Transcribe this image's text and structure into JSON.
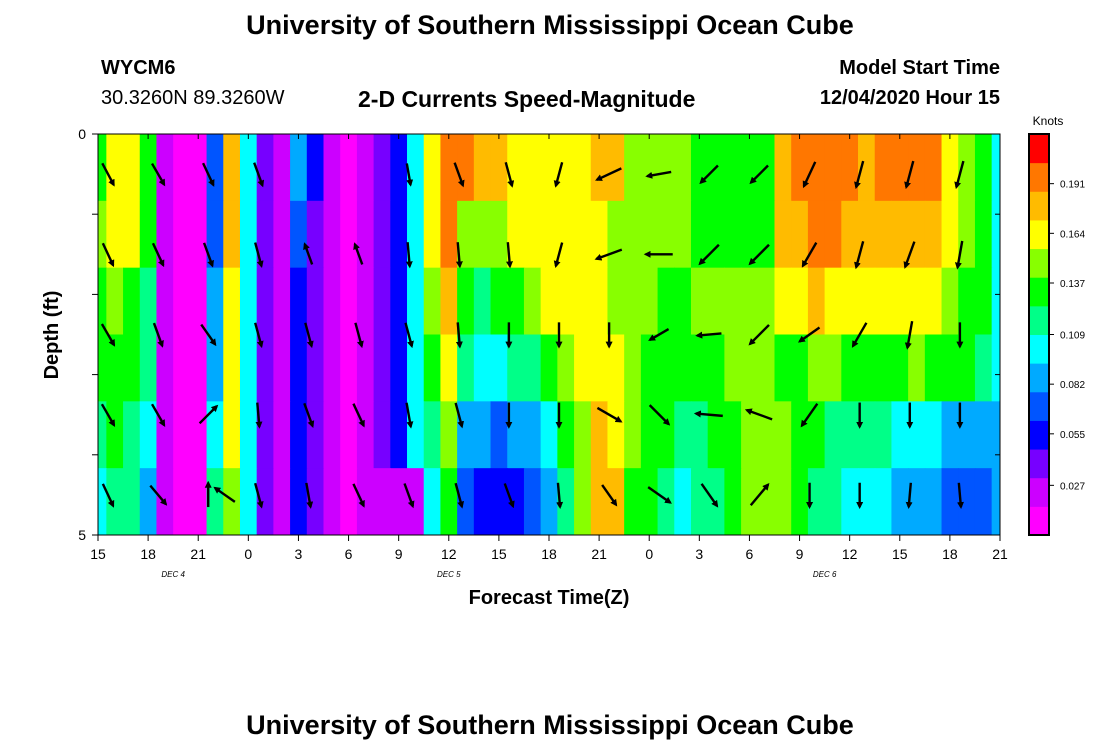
{
  "header": {
    "title": "University of Southern Mississippi Ocean Cube",
    "station_id": "WYCM6",
    "station_coords": "30.3260N 89.3260W",
    "plot_title": "2-D Currents Speed-Magnitude",
    "model_start_label": "Model Start Time",
    "model_start_value": "12/04/2020 Hour 15"
  },
  "footer": {
    "title": "University of Southern Mississippi Ocean Cube"
  },
  "colorbar": {
    "unit_label": "Knots",
    "tick_values": [
      0.027,
      0.055,
      0.082,
      0.109,
      0.137,
      0.164,
      0.191
    ],
    "tick_labels": [
      "0.027",
      "0.055",
      "0.082",
      "0.109",
      "0.137",
      "0.164",
      "0.191"
    ],
    "range": [
      0.0,
      0.218
    ],
    "colors": [
      "#ff00ff",
      "#cc00ff",
      "#7700ff",
      "#0000ff",
      "#0055ff",
      "#00aaff",
      "#00ffff",
      "#00ff88",
      "#00ff00",
      "#88ff00",
      "#ffff00",
      "#ffbb00",
      "#ff7700",
      "#ff0000"
    ]
  },
  "chart_data": {
    "type": "heatmap",
    "title": "2-D Currents Speed-Magnitude",
    "xlabel": "Forecast Time(Z)",
    "ylabel": "Depth (ft)",
    "y_range": [
      0,
      5
    ],
    "y_tick_labels": [
      "0",
      "5"
    ],
    "x_range_hours": [
      0,
      54
    ],
    "x_tick_labels": [
      "15",
      "18",
      "21",
      "0",
      "3",
      "6",
      "9",
      "12",
      "15",
      "18",
      "21",
      "0",
      "3",
      "6",
      "9",
      "12",
      "15",
      "18",
      "21"
    ],
    "date_labels": [
      "DEC 4",
      "DEC 5",
      "DEC 6"
    ],
    "date_label_hours": [
      4.5,
      21,
      43.5
    ],
    "depth_levels": [
      0.5,
      1.5,
      2.5,
      3.5,
      4.5
    ],
    "speed_profile_hours": [
      0,
      1,
      2,
      3,
      4,
      5,
      6,
      7,
      8,
      9,
      10,
      11,
      12,
      13,
      14,
      15,
      16,
      17,
      18,
      19,
      20,
      21,
      22,
      23,
      24,
      25,
      26,
      27,
      28,
      29,
      30,
      31,
      32,
      33,
      34,
      35,
      36,
      37,
      38,
      39,
      40,
      41,
      42,
      43,
      44,
      45,
      46,
      47,
      48,
      49,
      50,
      51,
      52,
      53,
      54
    ],
    "speed_knots": [
      [
        0.135,
        0.16,
        0.17,
        0.14,
        0.02,
        0.015,
        0.015,
        0.07,
        0.18,
        0.1,
        0.04,
        0.03,
        0.09,
        0.06,
        0.02,
        0.015,
        0.02,
        0.04,
        0.06,
        0.1,
        0.17,
        0.2,
        0.19,
        0.18,
        0.175,
        0.17,
        0.165,
        0.16,
        0.165,
        0.17,
        0.18,
        0.175,
        0.15,
        0.145,
        0.15,
        0.145,
        0.14,
        0.14,
        0.135,
        0.13,
        0.13,
        0.18,
        0.19,
        0.195,
        0.2,
        0.195,
        0.185,
        0.19,
        0.19,
        0.195,
        0.19,
        0.17,
        0.15,
        0.13,
        0.1
      ],
      [
        0.15,
        0.165,
        0.16,
        0.13,
        0.02,
        0.015,
        0.015,
        0.07,
        0.175,
        0.1,
        0.04,
        0.03,
        0.07,
        0.04,
        0.02,
        0.015,
        0.02,
        0.04,
        0.06,
        0.1,
        0.16,
        0.19,
        0.145,
        0.145,
        0.15,
        0.165,
        0.17,
        0.17,
        0.165,
        0.16,
        0.16,
        0.155,
        0.15,
        0.15,
        0.15,
        0.145,
        0.14,
        0.14,
        0.135,
        0.14,
        0.14,
        0.18,
        0.185,
        0.19,
        0.19,
        0.185,
        0.175,
        0.175,
        0.175,
        0.185,
        0.18,
        0.165,
        0.15,
        0.13,
        0.1
      ],
      [
        0.14,
        0.15,
        0.14,
        0.12,
        0.02,
        0.015,
        0.015,
        0.08,
        0.17,
        0.1,
        0.04,
        0.03,
        0.06,
        0.04,
        0.02,
        0.015,
        0.02,
        0.04,
        0.06,
        0.1,
        0.15,
        0.18,
        0.13,
        0.12,
        0.125,
        0.135,
        0.15,
        0.16,
        0.165,
        0.165,
        0.16,
        0.155,
        0.15,
        0.145,
        0.14,
        0.14,
        0.145,
        0.15,
        0.15,
        0.155,
        0.155,
        0.165,
        0.17,
        0.175,
        0.17,
        0.165,
        0.16,
        0.16,
        0.16,
        0.165,
        0.16,
        0.15,
        0.14,
        0.125,
        0.1
      ],
      [
        0.125,
        0.14,
        0.13,
        0.11,
        0.02,
        0.015,
        0.015,
        0.09,
        0.165,
        0.1,
        0.04,
        0.03,
        0.06,
        0.04,
        0.02,
        0.015,
        0.02,
        0.04,
        0.06,
        0.1,
        0.13,
        0.16,
        0.11,
        0.1,
        0.1,
        0.11,
        0.12,
        0.13,
        0.145,
        0.16,
        0.17,
        0.165,
        0.15,
        0.14,
        0.135,
        0.13,
        0.135,
        0.14,
        0.145,
        0.145,
        0.145,
        0.14,
        0.14,
        0.145,
        0.145,
        0.14,
        0.14,
        0.14,
        0.14,
        0.145,
        0.14,
        0.135,
        0.13,
        0.12,
        0.1
      ],
      [
        0.11,
        0.125,
        0.12,
        0.1,
        0.02,
        0.015,
        0.015,
        0.1,
        0.16,
        0.1,
        0.04,
        0.03,
        0.06,
        0.04,
        0.02,
        0.015,
        0.02,
        0.04,
        0.06,
        0.1,
        0.11,
        0.15,
        0.09,
        0.08,
        0.075,
        0.08,
        0.09,
        0.1,
        0.125,
        0.15,
        0.175,
        0.17,
        0.145,
        0.135,
        0.125,
        0.115,
        0.12,
        0.13,
        0.14,
        0.15,
        0.15,
        0.145,
        0.14,
        0.13,
        0.12,
        0.115,
        0.11,
        0.11,
        0.105,
        0.1,
        0.095,
        0.09,
        0.085,
        0.08,
        0.09
      ],
      [
        0.095,
        0.11,
        0.11,
        0.09,
        0.02,
        0.015,
        0.015,
        0.11,
        0.155,
        0.1,
        0.04,
        0.03,
        0.06,
        0.04,
        0.02,
        0.015,
        0.02,
        0.03,
        0.03,
        0.03,
        0.095,
        0.135,
        0.07,
        0.06,
        0.055,
        0.06,
        0.07,
        0.085,
        0.11,
        0.145,
        0.185,
        0.18,
        0.14,
        0.125,
        0.115,
        0.105,
        0.11,
        0.12,
        0.135,
        0.15,
        0.155,
        0.15,
        0.14,
        0.12,
        0.11,
        0.1,
        0.095,
        0.095,
        0.09,
        0.085,
        0.08,
        0.075,
        0.07,
        0.065,
        0.08
      ]
    ],
    "vectors": [
      {
        "hour": 0,
        "dir_deg": 152,
        "mag": 0.9,
        "depth": 0.5
      },
      {
        "hour": 3,
        "dir_deg": 150,
        "mag": 0.9,
        "depth": 0.5
      },
      {
        "hour": 6,
        "dir_deg": 155,
        "mag": 0.9,
        "depth": 0.5
      },
      {
        "hour": 9,
        "dir_deg": 160,
        "mag": 0.9,
        "depth": 0.5
      },
      {
        "hour": 18,
        "dir_deg": 170,
        "mag": 0.8,
        "depth": 0.5
      },
      {
        "hour": 21,
        "dir_deg": 160,
        "mag": 0.9,
        "depth": 0.5
      },
      {
        "hour": 24,
        "dir_deg": 165,
        "mag": 0.9,
        "depth": 0.5
      },
      {
        "hour": 27,
        "dir_deg": 195,
        "mag": 0.9,
        "depth": 0.5
      },
      {
        "hour": 30,
        "dir_deg": 245,
        "mag": 1.0,
        "depth": 0.5
      },
      {
        "hour": 33,
        "dir_deg": 260,
        "mag": 0.9,
        "depth": 0.5
      },
      {
        "hour": 36,
        "dir_deg": 225,
        "mag": 0.9,
        "depth": 0.5
      },
      {
        "hour": 39,
        "dir_deg": 225,
        "mag": 0.9,
        "depth": 0.5
      },
      {
        "hour": 42,
        "dir_deg": 205,
        "mag": 1.0,
        "depth": 0.5
      },
      {
        "hour": 45,
        "dir_deg": 195,
        "mag": 1.0,
        "depth": 0.5
      },
      {
        "hour": 48,
        "dir_deg": 195,
        "mag": 1.0,
        "depth": 0.5
      },
      {
        "hour": 51,
        "dir_deg": 195,
        "mag": 1.0,
        "depth": 0.5
      },
      {
        "hour": 0,
        "dir_deg": 155,
        "mag": 0.9,
        "depth": 1.5
      },
      {
        "hour": 3,
        "dir_deg": 155,
        "mag": 0.9,
        "depth": 1.5
      },
      {
        "hour": 6,
        "dir_deg": 160,
        "mag": 0.9,
        "depth": 1.5
      },
      {
        "hour": 9,
        "dir_deg": 165,
        "mag": 0.9,
        "depth": 1.5
      },
      {
        "hour": 12,
        "dir_deg": 340,
        "mag": 0.8,
        "depth": 1.5
      },
      {
        "hour": 15,
        "dir_deg": 340,
        "mag": 0.8,
        "depth": 1.5
      },
      {
        "hour": 18,
        "dir_deg": 175,
        "mag": 0.9,
        "depth": 1.5
      },
      {
        "hour": 21,
        "dir_deg": 175,
        "mag": 0.9,
        "depth": 1.5
      },
      {
        "hour": 24,
        "dir_deg": 175,
        "mag": 0.9,
        "depth": 1.5
      },
      {
        "hour": 27,
        "dir_deg": 195,
        "mag": 0.9,
        "depth": 1.5
      },
      {
        "hour": 30,
        "dir_deg": 250,
        "mag": 1.0,
        "depth": 1.5
      },
      {
        "hour": 33,
        "dir_deg": 270,
        "mag": 1.0,
        "depth": 1.5
      },
      {
        "hour": 36,
        "dir_deg": 225,
        "mag": 1.0,
        "depth": 1.5
      },
      {
        "hour": 39,
        "dir_deg": 225,
        "mag": 1.0,
        "depth": 1.5
      },
      {
        "hour": 42,
        "dir_deg": 210,
        "mag": 1.0,
        "depth": 1.5
      },
      {
        "hour": 45,
        "dir_deg": 195,
        "mag": 1.0,
        "depth": 1.5
      },
      {
        "hour": 48,
        "dir_deg": 200,
        "mag": 1.0,
        "depth": 1.5
      },
      {
        "hour": 51,
        "dir_deg": 190,
        "mag": 1.0,
        "depth": 1.5
      },
      {
        "hour": 0,
        "dir_deg": 150,
        "mag": 0.9,
        "depth": 2.5
      },
      {
        "hour": 3,
        "dir_deg": 160,
        "mag": 0.9,
        "depth": 2.5
      },
      {
        "hour": 6,
        "dir_deg": 145,
        "mag": 0.9,
        "depth": 2.5
      },
      {
        "hour": 9,
        "dir_deg": 165,
        "mag": 0.9,
        "depth": 2.5
      },
      {
        "hour": 12,
        "dir_deg": 165,
        "mag": 0.9,
        "depth": 2.5
      },
      {
        "hour": 15,
        "dir_deg": 165,
        "mag": 0.9,
        "depth": 2.5
      },
      {
        "hour": 18,
        "dir_deg": 165,
        "mag": 0.9,
        "depth": 2.5
      },
      {
        "hour": 21,
        "dir_deg": 175,
        "mag": 0.9,
        "depth": 2.5
      },
      {
        "hour": 24,
        "dir_deg": 180,
        "mag": 0.9,
        "depth": 2.5
      },
      {
        "hour": 27,
        "dir_deg": 180,
        "mag": 0.9,
        "depth": 2.5
      },
      {
        "hour": 30,
        "dir_deg": 180,
        "mag": 0.9,
        "depth": 2.5
      },
      {
        "hour": 33,
        "dir_deg": 240,
        "mag": 0.8,
        "depth": 2.5
      },
      {
        "hour": 36,
        "dir_deg": 265,
        "mag": 0.9,
        "depth": 2.5
      },
      {
        "hour": 39,
        "dir_deg": 225,
        "mag": 1.0,
        "depth": 2.5
      },
      {
        "hour": 42,
        "dir_deg": 235,
        "mag": 0.9,
        "depth": 2.5
      },
      {
        "hour": 45,
        "dir_deg": 210,
        "mag": 1.0,
        "depth": 2.5
      },
      {
        "hour": 48,
        "dir_deg": 190,
        "mag": 1.0,
        "depth": 2.5
      },
      {
        "hour": 51,
        "dir_deg": 180,
        "mag": 0.9,
        "depth": 2.5
      },
      {
        "hour": 0,
        "dir_deg": 150,
        "mag": 0.9,
        "depth": 3.5
      },
      {
        "hour": 3,
        "dir_deg": 150,
        "mag": 0.9,
        "depth": 3.5
      },
      {
        "hour": 6,
        "dir_deg": 45,
        "mag": 0.9,
        "depth": 3.5
      },
      {
        "hour": 9,
        "dir_deg": 175,
        "mag": 0.9,
        "depth": 3.5
      },
      {
        "hour": 12,
        "dir_deg": 160,
        "mag": 0.9,
        "depth": 3.5
      },
      {
        "hour": 15,
        "dir_deg": 155,
        "mag": 0.9,
        "depth": 3.5
      },
      {
        "hour": 18,
        "dir_deg": 170,
        "mag": 0.9,
        "depth": 3.5
      },
      {
        "hour": 21,
        "dir_deg": 165,
        "mag": 0.9,
        "depth": 3.5
      },
      {
        "hour": 24,
        "dir_deg": 180,
        "mag": 0.9,
        "depth": 3.5
      },
      {
        "hour": 27,
        "dir_deg": 180,
        "mag": 0.9,
        "depth": 3.5
      },
      {
        "hour": 30,
        "dir_deg": 120,
        "mag": 1.0,
        "depth": 3.5
      },
      {
        "hour": 33,
        "dir_deg": 135,
        "mag": 1.0,
        "depth": 3.5
      },
      {
        "hour": 36,
        "dir_deg": 275,
        "mag": 1.0,
        "depth": 3.5
      },
      {
        "hour": 39,
        "dir_deg": 290,
        "mag": 1.0,
        "depth": 3.5
      },
      {
        "hour": 42,
        "dir_deg": 215,
        "mag": 1.0,
        "depth": 3.5
      },
      {
        "hour": 45,
        "dir_deg": 180,
        "mag": 0.9,
        "depth": 3.5
      },
      {
        "hour": 48,
        "dir_deg": 180,
        "mag": 0.9,
        "depth": 3.5
      },
      {
        "hour": 51,
        "dir_deg": 180,
        "mag": 0.9,
        "depth": 3.5
      },
      {
        "hour": 0,
        "dir_deg": 155,
        "mag": 0.9,
        "depth": 4.5
      },
      {
        "hour": 3,
        "dir_deg": 140,
        "mag": 0.9,
        "depth": 4.5
      },
      {
        "hour": 6,
        "dir_deg": 0,
        "mag": 0.9,
        "depth": 4.5
      },
      {
        "hour": 7,
        "dir_deg": 305,
        "mag": 0.9,
        "depth": 4.5
      },
      {
        "hour": 9,
        "dir_deg": 165,
        "mag": 0.9,
        "depth": 4.5
      },
      {
        "hour": 12,
        "dir_deg": 170,
        "mag": 0.9,
        "depth": 4.5
      },
      {
        "hour": 15,
        "dir_deg": 155,
        "mag": 0.9,
        "depth": 4.5
      },
      {
        "hour": 18,
        "dir_deg": 160,
        "mag": 0.9,
        "depth": 4.5
      },
      {
        "hour": 21,
        "dir_deg": 165,
        "mag": 0.9,
        "depth": 4.5
      },
      {
        "hour": 24,
        "dir_deg": 160,
        "mag": 0.9,
        "depth": 4.5
      },
      {
        "hour": 27,
        "dir_deg": 175,
        "mag": 0.9,
        "depth": 4.5
      },
      {
        "hour": 30,
        "dir_deg": 145,
        "mag": 0.9,
        "depth": 4.5
      },
      {
        "hour": 33,
        "dir_deg": 125,
        "mag": 1.0,
        "depth": 4.5
      },
      {
        "hour": 36,
        "dir_deg": 145,
        "mag": 1.0,
        "depth": 4.5
      },
      {
        "hour": 39,
        "dir_deg": 40,
        "mag": 1.0,
        "depth": 4.5
      },
      {
        "hour": 42,
        "dir_deg": 180,
        "mag": 0.9,
        "depth": 4.5
      },
      {
        "hour": 45,
        "dir_deg": 180,
        "mag": 0.9,
        "depth": 4.5
      },
      {
        "hour": 48,
        "dir_deg": 185,
        "mag": 0.9,
        "depth": 4.5
      },
      {
        "hour": 51,
        "dir_deg": 175,
        "mag": 0.9,
        "depth": 4.5
      }
    ]
  }
}
